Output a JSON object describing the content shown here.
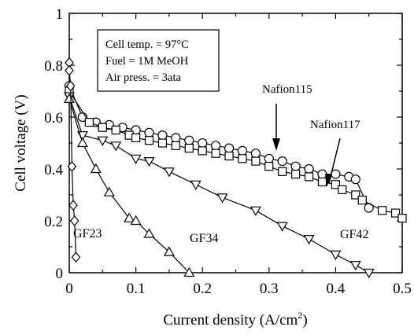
{
  "chart_data": {
    "type": "line",
    "xlabel": "Current density (A/cm²)",
    "ylabel": "Cell voltage (V)",
    "xlim": [
      0,
      0.5
    ],
    "ylim": [
      0,
      1
    ],
    "xticks": [
      "0",
      "0.1",
      "0.2",
      "0.3",
      "0.4",
      "0.5"
    ],
    "yticks": [
      "0",
      "0.2",
      "0.4",
      "0.6",
      "0.8",
      "1"
    ],
    "xlabel_main": "Current density (A/cm",
    "xlabel_sup": "2",
    "xlabel_end": ")",
    "infobox": [
      "Cell temp. = 97°C",
      "Fuel = 1M MeOH",
      "Air press. = 3ata"
    ],
    "annotations": [
      {
        "text": "Nafion115",
        "series": "Nafion115"
      },
      {
        "text": "Nafion117",
        "series": "Nafion117"
      }
    ],
    "series": [
      {
        "name": "Nafion115",
        "marker": "circle",
        "points": [
          [
            0,
            0.72
          ],
          [
            0.02,
            0.6
          ],
          [
            0.04,
            0.58
          ],
          [
            0.06,
            0.57
          ],
          [
            0.08,
            0.56
          ],
          [
            0.1,
            0.55
          ],
          [
            0.12,
            0.54
          ],
          [
            0.14,
            0.53
          ],
          [
            0.16,
            0.52
          ],
          [
            0.18,
            0.51
          ],
          [
            0.2,
            0.5
          ],
          [
            0.22,
            0.49
          ],
          [
            0.24,
            0.48
          ],
          [
            0.26,
            0.47
          ],
          [
            0.28,
            0.46
          ],
          [
            0.3,
            0.44
          ],
          [
            0.32,
            0.43
          ],
          [
            0.34,
            0.41
          ],
          [
            0.36,
            0.4
          ],
          [
            0.38,
            0.38
          ],
          [
            0.4,
            0.38
          ],
          [
            0.42,
            0.37
          ],
          [
            0.43,
            0.36
          ],
          [
            0.45,
            0.25
          ]
        ]
      },
      {
        "name": "Nafion117",
        "marker": "square",
        "points": [
          [
            0,
            0.7
          ],
          [
            0.03,
            0.58
          ],
          [
            0.05,
            0.56
          ],
          [
            0.07,
            0.55
          ],
          [
            0.09,
            0.53
          ],
          [
            0.1,
            0.52
          ],
          [
            0.12,
            0.51
          ],
          [
            0.14,
            0.5
          ],
          [
            0.16,
            0.49
          ],
          [
            0.18,
            0.48
          ],
          [
            0.2,
            0.47
          ],
          [
            0.22,
            0.46
          ],
          [
            0.24,
            0.45
          ],
          [
            0.26,
            0.44
          ],
          [
            0.28,
            0.43
          ],
          [
            0.3,
            0.41
          ],
          [
            0.32,
            0.39
          ],
          [
            0.34,
            0.38
          ],
          [
            0.36,
            0.37
          ],
          [
            0.38,
            0.35
          ],
          [
            0.4,
            0.34
          ],
          [
            0.41,
            0.32
          ],
          [
            0.43,
            0.3
          ],
          [
            0.44,
            0.28
          ],
          [
            0.47,
            0.24
          ],
          [
            0.49,
            0.23
          ],
          [
            0.5,
            0.21
          ]
        ]
      },
      {
        "name": "GF42",
        "marker": "triangle-down",
        "points": [
          [
            0,
            0.68
          ],
          [
            0.02,
            0.53
          ],
          [
            0.05,
            0.51
          ],
          [
            0.07,
            0.49
          ],
          [
            0.1,
            0.44
          ],
          [
            0.12,
            0.43
          ],
          [
            0.15,
            0.39
          ],
          [
            0.19,
            0.34
          ],
          [
            0.23,
            0.29
          ],
          [
            0.28,
            0.24
          ],
          [
            0.32,
            0.18
          ],
          [
            0.36,
            0.13
          ],
          [
            0.4,
            0.07
          ],
          [
            0.43,
            0.03
          ],
          [
            0.45,
            0.0
          ]
        ]
      },
      {
        "name": "GF34",
        "marker": "triangle-up",
        "points": [
          [
            0,
            0.67
          ],
          [
            0.02,
            0.5
          ],
          [
            0.04,
            0.4
          ],
          [
            0.06,
            0.31
          ],
          [
            0.09,
            0.21
          ],
          [
            0.1,
            0.2
          ],
          [
            0.12,
            0.15
          ],
          [
            0.15,
            0.08
          ],
          [
            0.18,
            0.0
          ]
        ]
      },
      {
        "name": "GF23",
        "marker": "diamond",
        "points": [
          [
            0,
            0.81
          ],
          [
            0,
            0.78
          ],
          [
            0.002,
            0.72
          ],
          [
            0.004,
            0.41
          ],
          [
            0.006,
            0.26
          ],
          [
            0.008,
            0.2
          ],
          [
            0.01,
            0.06
          ]
        ]
      }
    ],
    "series_labels": [
      {
        "text": "GF23",
        "series": "GF23"
      },
      {
        "text": "GF34",
        "series": "GF34"
      },
      {
        "text": "GF42",
        "series": "GF42"
      }
    ]
  }
}
